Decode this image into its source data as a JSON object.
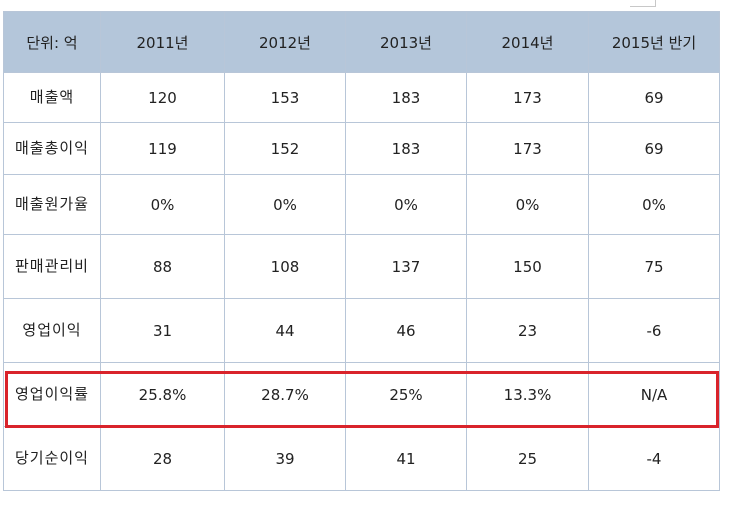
{
  "table": {
    "header": {
      "unit": "단위: 억",
      "columns": [
        "2011년",
        "2012년",
        "2013년",
        "2014년",
        "2015년 반기"
      ]
    },
    "rows": [
      {
        "label": "매출액",
        "values": [
          "120",
          "153",
          "183",
          "173",
          "69"
        ]
      },
      {
        "label": "매출총이익",
        "values": [
          "119",
          "152",
          "183",
          "173",
          "69"
        ]
      },
      {
        "label": "매출원가율",
        "values": [
          "0%",
          "0%",
          "0%",
          "0%",
          "0%"
        ]
      },
      {
        "label": "판매관리비",
        "values": [
          "88",
          "108",
          "137",
          "150",
          "75"
        ]
      },
      {
        "label": "영업이익",
        "values": [
          "31",
          "44",
          "46",
          "23",
          "-6"
        ]
      },
      {
        "label": "영업이익률",
        "values": [
          "25.8%",
          "28.7%",
          "25%",
          "13.3%",
          "N/A"
        ]
      },
      {
        "label": "당기순이익",
        "values": [
          "28",
          "39",
          "41",
          "25",
          "-4"
        ]
      }
    ]
  },
  "colors": {
    "header_bg": "#b4c6da",
    "grid": "#b8c6d8",
    "highlight": "#d9232b"
  },
  "highlighted_row": "영업이익률"
}
